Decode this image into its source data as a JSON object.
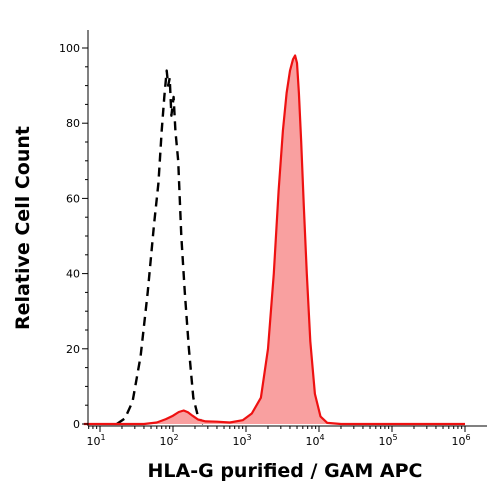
{
  "chart_data": {
    "type": "area",
    "xlabel": "HLA-G purified / GAM APC",
    "ylabel": "Relative Cell Count",
    "xscale": "log",
    "xlim": [
      5,
      1200000
    ],
    "ylim": [
      0,
      105
    ],
    "grid": false,
    "x_ticks": [
      {
        "base": "10",
        "exp": "1",
        "value": 10
      },
      {
        "base": "10",
        "exp": "2",
        "value": 100
      },
      {
        "base": "10",
        "exp": "3",
        "value": 1000
      },
      {
        "base": "10",
        "exp": "4",
        "value": 10000
      },
      {
        "base": "10",
        "exp": "5",
        "value": 100000
      },
      {
        "base": "10",
        "exp": "6",
        "value": 1000000
      }
    ],
    "y_ticks": [
      0,
      20,
      40,
      60,
      80,
      100
    ],
    "series": [
      {
        "style": "dashed",
        "color": "#000000",
        "points": [
          [
            17,
            0
          ],
          [
            22,
            1.5
          ],
          [
            28,
            6
          ],
          [
            36,
            18
          ],
          [
            45,
            35
          ],
          [
            55,
            53
          ],
          [
            63,
            64
          ],
          [
            70,
            78
          ],
          [
            76,
            87
          ],
          [
            82,
            94
          ],
          [
            86,
            90
          ],
          [
            90,
            92
          ],
          [
            95,
            82
          ],
          [
            102,
            87
          ],
          [
            108,
            78
          ],
          [
            118,
            70
          ],
          [
            130,
            50
          ],
          [
            145,
            35
          ],
          [
            165,
            20
          ],
          [
            190,
            7
          ],
          [
            220,
            2
          ],
          [
            260,
            0
          ]
        ]
      },
      {
        "style": "filled",
        "color": "#ee1111",
        "fill": "#f9a0a0",
        "points": [
          [
            6,
            0
          ],
          [
            40,
            0
          ],
          [
            60,
            0.4
          ],
          [
            80,
            1.3
          ],
          [
            100,
            2.2
          ],
          [
            120,
            3.2
          ],
          [
            140,
            3.6
          ],
          [
            160,
            3.1
          ],
          [
            185,
            2.2
          ],
          [
            220,
            1.2
          ],
          [
            280,
            0.7
          ],
          [
            400,
            0.6
          ],
          [
            600,
            0.4
          ],
          [
            900,
            1.0
          ],
          [
            1200,
            2.8
          ],
          [
            1600,
            7
          ],
          [
            2000,
            20
          ],
          [
            2400,
            40
          ],
          [
            2800,
            62
          ],
          [
            3200,
            78
          ],
          [
            3600,
            88
          ],
          [
            4000,
            94
          ],
          [
            4400,
            97
          ],
          [
            4700,
            98
          ],
          [
            5000,
            96
          ],
          [
            5300,
            88
          ],
          [
            5700,
            75
          ],
          [
            6200,
            58
          ],
          [
            6800,
            40
          ],
          [
            7600,
            22
          ],
          [
            8800,
            8
          ],
          [
            10500,
            2
          ],
          [
            13000,
            0.3
          ],
          [
            20000,
            0
          ],
          [
            1000000,
            0
          ]
        ]
      }
    ]
  }
}
